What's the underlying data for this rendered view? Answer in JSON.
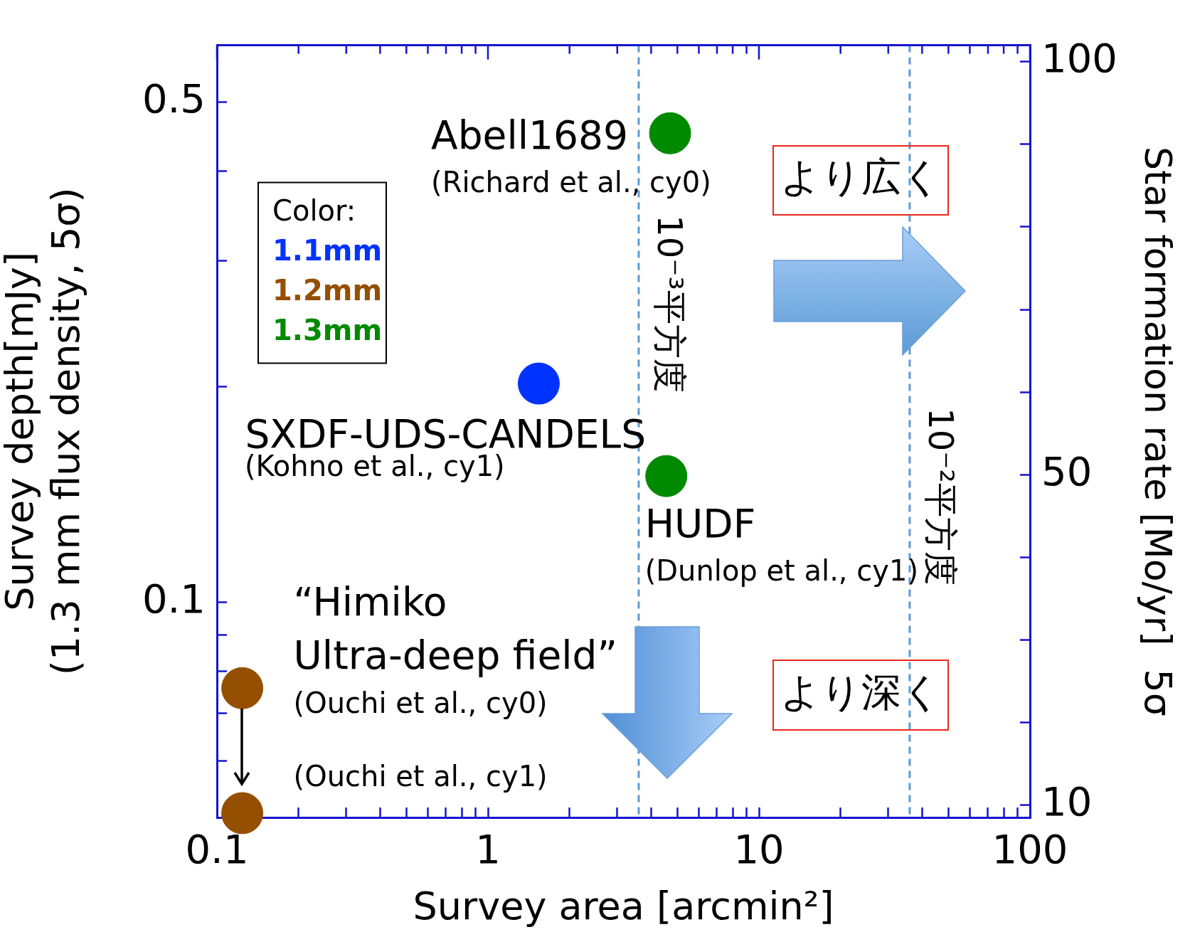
{
  "chart_data": {
    "type": "scatter",
    "xlabel": "Survey area [arcmin²]",
    "ylabel": "Survey depth[mJy]\n(1.3 mm flux density, 5σ)",
    "y2label": "Star formation rate [Mo/yr]  5σ",
    "legend_title": "Color:",
    "marker": "circle",
    "log": "xy",
    "xlim": [
      0.1,
      100
    ],
    "ylim": [
      0.05,
      0.6
    ],
    "y2lim": [
      8.5,
      102
    ],
    "xticks": [
      {
        "value": 0.1,
        "label": "0.1"
      },
      {
        "value": 0.2,
        "label": null
      },
      {
        "value": 0.3,
        "label": null
      },
      {
        "value": 0.4,
        "label": null
      },
      {
        "value": 0.5,
        "label": null
      },
      {
        "value": 0.6,
        "label": null
      },
      {
        "value": 0.7,
        "label": null
      },
      {
        "value": 0.8,
        "label": null
      },
      {
        "value": 0.9,
        "label": null
      },
      1,
      {
        "value": 2,
        "label": null
      },
      {
        "value": 3,
        "label": null
      },
      {
        "value": 4,
        "label": null
      },
      {
        "value": 5,
        "label": null
      },
      {
        "value": 6,
        "label": null
      },
      {
        "value": 7,
        "label": null
      },
      {
        "value": 8,
        "label": null
      },
      {
        "value": 9,
        "label": null
      },
      10,
      {
        "value": 20,
        "label": null
      },
      {
        "value": 30,
        "label": null
      },
      {
        "value": 40,
        "label": null
      },
      {
        "value": 50,
        "label": null
      },
      {
        "value": 60,
        "label": null
      },
      {
        "value": 70,
        "label": null
      },
      {
        "value": 80,
        "label": null
      },
      {
        "value": 90,
        "label": null
      },
      100
    ],
    "yticks": [
      {
        "value": 0.06,
        "label": null
      },
      {
        "value": 0.07,
        "label": null
      },
      {
        "value": 0.08,
        "label": null
      },
      {
        "value": 0.09,
        "label": null
      },
      0.1,
      {
        "value": 0.2,
        "label": null
      },
      {
        "value": 0.3,
        "label": null
      },
      {
        "value": 0.4,
        "label": null
      },
      0.5
    ],
    "y2ticks": [
      10,
      {
        "value": 20,
        "label": null
      },
      {
        "value": 30,
        "label": null
      },
      {
        "value": 40,
        "label": null
      },
      50,
      {
        "value": 60,
        "label": null
      },
      {
        "value": 70,
        "label": null
      },
      {
        "value": 80,
        "label": null
      },
      {
        "value": 90,
        "label": null
      },
      100
    ],
    "series": [
      {
        "name": "1.1mm",
        "color": "#0033ff",
        "x": [
          1.54
        ],
        "values": [
          0.202
        ]
      },
      {
        "name": "1.2mm",
        "color": "#954f00",
        "x": [
          0.124,
          0.124
        ],
        "values": [
          0.0758,
          0.0507
        ]
      },
      {
        "name": "1.3mm",
        "color": "#008a00",
        "x": [
          4.7,
          4.55
        ],
        "values": [
          0.452,
          0.15
        ]
      }
    ],
    "ref_lines": [
      {
        "axis": "x",
        "value": 3.6,
        "label": "10⁻³平方度",
        "color": "#5b9bd5",
        "line_style": "dashed"
      },
      {
        "axis": "x",
        "value": 36,
        "label": "10⁻²平方度",
        "color": "#5b9bd5",
        "line_style": "dashed"
      }
    ],
    "annotations": [
      {
        "text": "Abell1689",
        "x": 4.7,
        "y": 0.452
      },
      {
        "text": "(Richard et al., cy0)",
        "x": 4.7,
        "y": 0.452
      },
      {
        "text": "SXDF-UDS-CANDELS",
        "x": 1.54,
        "y": 0.202
      },
      "(Kohno et al., cy1)",
      {
        "text": "HUDF",
        "x": 4.55,
        "y": 0.15
      },
      {
        "text": "(Dunlop et al., cy1)",
        "x": 4.55,
        "y": 0.15
      },
      {
        "text": "“Himiko\nUltra-deep field”",
        "x": 0.124,
        "y": 0.0758
      },
      {
        "text": "(Ouchi et al., cy0)",
        "x": 0.124,
        "y": 0.0758
      },
      {
        "text": "(Ouchi et al., cy1)",
        "x": 0.124,
        "y": 0.0507
      },
      "より広く",
      "より深く"
    ]
  }
}
